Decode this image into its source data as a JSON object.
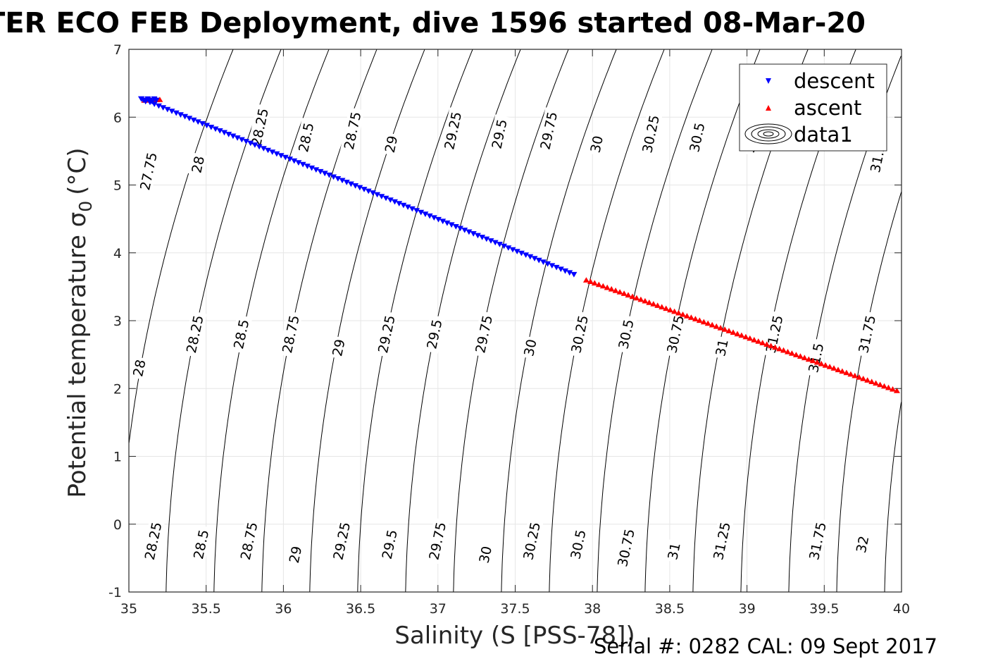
{
  "chart_data": {
    "type": "scatter",
    "title": "TER ECO FEB Deployment, dive 1596 started 08-Mar-20",
    "xlabel": "Salinity (S [PSS-78])",
    "ylabel_text": "Potential temperature σ",
    "ylabel_subscript": "0",
    "ylabel_unit": "(°C)",
    "xlim": [
      35,
      40
    ],
    "ylim": [
      -1,
      7
    ],
    "grid": true,
    "x_ticks": [
      35,
      35.5,
      36,
      36.5,
      37,
      37.5,
      38,
      38.5,
      39,
      39.5,
      40
    ],
    "x_tick_labels": [
      "35",
      "35.5",
      "36",
      "36.5",
      "37",
      "37.5",
      "38",
      "38.5",
      "39",
      "39.5",
      "40"
    ],
    "y_ticks": [
      -1,
      0,
      1,
      2,
      3,
      4,
      5,
      6,
      7
    ],
    "y_tick_labels": [
      "-1",
      "0",
      "1",
      "2",
      "3",
      "4",
      "5",
      "6",
      "7"
    ],
    "legend_placement": "top-right",
    "legend": [
      "descent",
      "ascent",
      "data1"
    ],
    "series": [
      {
        "name": "descent",
        "color": "#0000ff",
        "marker": "triangle-down",
        "x_start": 35.08,
        "y_start": 6.27,
        "x_end": 37.88,
        "y_end": 3.68,
        "count": 100
      },
      {
        "name": "ascent",
        "color": "#ff0000",
        "marker": "triangle-up",
        "x_start": 37.96,
        "y_start": 3.6,
        "x_end": 39.97,
        "y_end": 1.97,
        "count": 75
      }
    ],
    "ascent_surface": {
      "x": [
        35.1,
        35.2
      ],
      "y": [
        6.25,
        6.26
      ],
      "count": 6
    },
    "contours": {
      "levels": [
        27.75,
        28,
        28.25,
        28.5,
        28.75,
        29,
        29.25,
        29.5,
        29.75,
        30,
        30.25,
        30.5,
        30.75,
        31,
        31.25,
        31.5,
        31.75,
        32
      ],
      "line_color": "#000000",
      "labels": [
        {
          "text": "27.75",
          "x": 35.13,
          "y": 5.2
        },
        {
          "text": "28",
          "x": 35.45,
          "y": 5.3
        },
        {
          "text": "28.25",
          "x": 35.85,
          "y": 5.85
        },
        {
          "text": "28.5",
          "x": 36.15,
          "y": 5.7
        },
        {
          "text": "28.75",
          "x": 36.45,
          "y": 5.8
        },
        {
          "text": "29",
          "x": 36.7,
          "y": 5.6
        },
        {
          "text": "29.25",
          "x": 37.1,
          "y": 5.8
        },
        {
          "text": "29.5",
          "x": 37.4,
          "y": 5.75
        },
        {
          "text": "29.75",
          "x": 37.72,
          "y": 5.8
        },
        {
          "text": "30",
          "x": 38.03,
          "y": 5.6
        },
        {
          "text": "30.25",
          "x": 38.38,
          "y": 5.75
        },
        {
          "text": "30.5",
          "x": 38.68,
          "y": 5.7
        },
        {
          "text": "31",
          "x": 39.03,
          "y": 5.6
        },
        {
          "text": "31.5",
          "x": 39.85,
          "y": 5.4
        },
        {
          "text": "28",
          "x": 35.07,
          "y": 2.3
        },
        {
          "text": "28.25",
          "x": 35.43,
          "y": 2.8
        },
        {
          "text": "28.5",
          "x": 35.73,
          "y": 2.8
        },
        {
          "text": "28.75",
          "x": 36.05,
          "y": 2.8
        },
        {
          "text": "29",
          "x": 36.36,
          "y": 2.6
        },
        {
          "text": "29.25",
          "x": 36.67,
          "y": 2.8
        },
        {
          "text": "29.5",
          "x": 36.98,
          "y": 2.8
        },
        {
          "text": "29.75",
          "x": 37.3,
          "y": 2.8
        },
        {
          "text": "30",
          "x": 37.6,
          "y": 2.6
        },
        {
          "text": "30.25",
          "x": 37.92,
          "y": 2.8
        },
        {
          "text": "30.5",
          "x": 38.22,
          "y": 2.8
        },
        {
          "text": "30.75",
          "x": 38.54,
          "y": 2.8
        },
        {
          "text": "31",
          "x": 38.84,
          "y": 2.6
        },
        {
          "text": "31.25",
          "x": 39.18,
          "y": 2.8
        },
        {
          "text": "31.5",
          "x": 39.45,
          "y": 2.45
        },
        {
          "text": "31.75",
          "x": 39.78,
          "y": 2.8
        },
        {
          "text": "28.25",
          "x": 35.16,
          "y": -0.25
        },
        {
          "text": "28.5",
          "x": 35.47,
          "y": -0.3
        },
        {
          "text": "28.75",
          "x": 35.78,
          "y": -0.25
        },
        {
          "text": "29",
          "x": 36.08,
          "y": -0.45
        },
        {
          "text": "29.25",
          "x": 36.38,
          "y": -0.25
        },
        {
          "text": "29.5",
          "x": 36.69,
          "y": -0.3
        },
        {
          "text": "29.75",
          "x": 37.0,
          "y": -0.25
        },
        {
          "text": "30",
          "x": 37.31,
          "y": -0.45
        },
        {
          "text": "30.25",
          "x": 37.61,
          "y": -0.25
        },
        {
          "text": "30.5",
          "x": 37.91,
          "y": -0.3
        },
        {
          "text": "30.75",
          "x": 38.22,
          "y": -0.35
        },
        {
          "text": "31",
          "x": 38.53,
          "y": -0.4
        },
        {
          "text": "31.25",
          "x": 38.84,
          "y": -0.25
        },
        {
          "text": "31.75",
          "x": 39.46,
          "y": -0.25
        },
        {
          "text": "32",
          "x": 39.75,
          "y": -0.3
        }
      ]
    }
  },
  "footer": "Serial #: 0282  CAL: 09 Sept 2017"
}
